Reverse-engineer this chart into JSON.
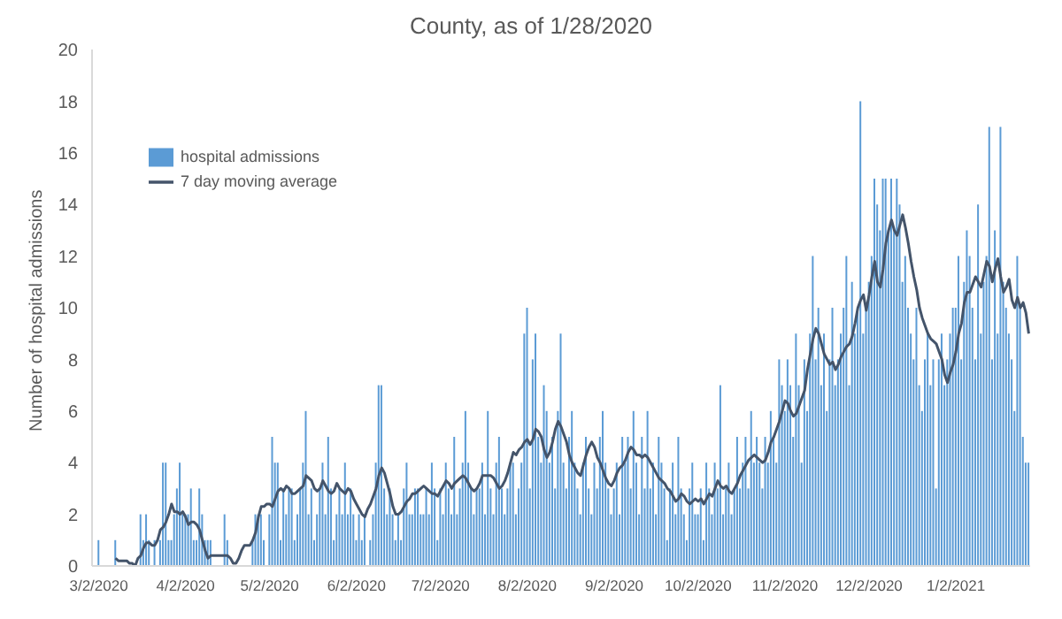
{
  "chart_data": {
    "type": "bar",
    "title": "County, as of 1/28/2020",
    "ylabel": "Number of hospital admissions",
    "categories": [
      "3/2/2020",
      null,
      null,
      null,
      null,
      null,
      null,
      null,
      null,
      null,
      null,
      null,
      null,
      null,
      null,
      null,
      null,
      null,
      null,
      null,
      null,
      null,
      null,
      null,
      null,
      null,
      null,
      null,
      null,
      null,
      null,
      "4/2/2020",
      null,
      null,
      null,
      null,
      null,
      null,
      null,
      null,
      null,
      null,
      null,
      null,
      null,
      null,
      null,
      null,
      null,
      null,
      null,
      null,
      null,
      null,
      null,
      null,
      null,
      null,
      null,
      null,
      null,
      "5/2/2020",
      null,
      null,
      null,
      null,
      null,
      null,
      null,
      null,
      null,
      null,
      null,
      null,
      null,
      null,
      null,
      null,
      null,
      null,
      null,
      null,
      null,
      null,
      null,
      null,
      null,
      null,
      null,
      null,
      null,
      null,
      "6/2/2020",
      null,
      null,
      null,
      null,
      null,
      null,
      null,
      null,
      null,
      null,
      null,
      null,
      null,
      null,
      null,
      null,
      null,
      null,
      null,
      null,
      null,
      null,
      null,
      null,
      null,
      null,
      null,
      null,
      null,
      "7/2/2020",
      null,
      null,
      null,
      null,
      null,
      null,
      null,
      null,
      null,
      null,
      null,
      null,
      null,
      null,
      null,
      null,
      null,
      null,
      null,
      null,
      null,
      null,
      null,
      null,
      null,
      null,
      null,
      null,
      null,
      null,
      "8/2/2020",
      null,
      null,
      null,
      null,
      null,
      null,
      null,
      null,
      null,
      null,
      null,
      null,
      null,
      null,
      null,
      null,
      null,
      null,
      null,
      null,
      null,
      null,
      null,
      null,
      null,
      null,
      null,
      null,
      null,
      null,
      "9/2/2020",
      null,
      null,
      null,
      null,
      null,
      null,
      null,
      null,
      null,
      null,
      null,
      null,
      null,
      null,
      null,
      null,
      null,
      null,
      null,
      null,
      null,
      null,
      null,
      null,
      null,
      null,
      null,
      null,
      null,
      "10/2/2020",
      null,
      null,
      null,
      null,
      null,
      null,
      null,
      null,
      null,
      null,
      null,
      null,
      null,
      null,
      null,
      null,
      null,
      null,
      null,
      null,
      null,
      null,
      null,
      null,
      null,
      null,
      null,
      null,
      null,
      null,
      "11/2/2020",
      null,
      null,
      null,
      null,
      null,
      null,
      null,
      null,
      null,
      null,
      null,
      null,
      null,
      null,
      null,
      null,
      null,
      null,
      null,
      null,
      null,
      null,
      null,
      null,
      null,
      null,
      null,
      null,
      null,
      "12/2/2020",
      null,
      null,
      null,
      null,
      null,
      null,
      null,
      null,
      null,
      null,
      null,
      null,
      null,
      null,
      null,
      null,
      null,
      null,
      null,
      null,
      null,
      null,
      null,
      null,
      null,
      null,
      null,
      null,
      null,
      null,
      "1/2/2021",
      null,
      null,
      null,
      null,
      null,
      null,
      null,
      null,
      null,
      null,
      null,
      null,
      null,
      null,
      null,
      null,
      null,
      null,
      null,
      null,
      null,
      null,
      null,
      null,
      null,
      null
    ],
    "series": [
      {
        "name": "hospital admissions",
        "color": "#5b9bd5",
        "values": [
          1,
          0,
          0,
          0,
          0,
          0,
          1,
          0,
          0,
          0,
          0,
          0,
          0,
          0,
          0,
          2,
          1,
          2,
          1,
          0,
          1,
          0,
          1,
          4,
          4,
          1,
          1,
          2,
          3,
          4,
          2,
          2,
          2,
          3,
          1,
          1,
          3,
          2,
          1,
          1,
          1,
          0,
          0,
          0,
          0,
          2,
          1,
          0,
          0,
          0,
          0,
          0,
          0,
          0,
          0,
          1,
          2,
          2,
          2,
          1,
          0,
          2,
          5,
          4,
          4,
          1,
          3,
          2,
          3,
          3,
          1,
          2,
          3,
          4,
          6,
          2,
          3,
          1,
          2,
          3,
          4,
          2,
          5,
          3,
          1,
          2,
          3,
          2,
          4,
          2,
          3,
          2,
          1,
          2,
          1,
          2,
          0,
          1,
          2,
          4,
          7,
          7,
          3,
          2,
          3,
          2,
          1,
          2,
          1,
          3,
          4,
          2,
          2,
          3,
          3,
          2,
          2,
          3,
          2,
          4,
          3,
          1,
          3,
          2,
          4,
          3,
          2,
          5,
          2,
          3,
          4,
          6,
          4,
          3,
          2,
          3,
          3,
          4,
          2,
          6,
          3,
          2,
          4,
          5,
          3,
          2,
          3,
          4,
          4,
          2,
          3,
          4,
          9,
          10,
          3,
          8,
          9,
          5,
          4,
          7,
          6,
          4,
          5,
          3,
          6,
          9,
          4,
          3,
          5,
          6,
          4,
          3,
          2,
          4,
          5,
          3,
          2,
          4,
          3,
          5,
          6,
          4,
          3,
          2,
          3,
          4,
          2,
          5,
          4,
          5,
          3,
          6,
          4,
          2,
          5,
          3,
          6,
          3,
          4,
          2,
          5,
          4,
          3,
          1,
          3,
          4,
          2,
          5,
          3,
          2,
          1,
          3,
          4,
          2,
          2,
          3,
          1,
          4,
          3,
          2,
          4,
          3,
          7,
          2,
          3,
          4,
          2,
          3,
          5,
          3,
          4,
          5,
          3,
          6,
          4,
          5,
          4,
          3,
          5,
          4,
          6,
          5,
          4,
          8,
          7,
          6,
          8,
          7,
          5,
          9,
          7,
          4,
          8,
          6,
          9,
          12,
          8,
          10,
          7,
          9,
          6,
          8,
          10,
          7,
          8,
          9,
          10,
          12,
          7,
          11,
          9,
          10,
          18,
          9,
          10,
          11,
          12,
          15,
          14,
          13,
          15,
          15,
          13,
          15,
          13,
          15,
          14,
          11,
          12,
          10,
          9,
          8,
          10,
          7,
          6,
          8,
          9,
          7,
          8,
          3,
          8,
          9,
          7,
          8,
          9,
          10,
          10,
          12,
          8,
          11,
          13,
          12,
          10,
          8,
          14,
          9,
          11,
          12,
          17,
          8,
          13,
          9,
          17,
          11,
          10,
          9,
          8,
          6,
          12,
          10,
          5,
          4,
          4
        ]
      },
      {
        "name": "7 day moving average",
        "type": "line",
        "color": "#44546a",
        "values": [
          null,
          null,
          null,
          null,
          null,
          null,
          0.3,
          0.2,
          0.2,
          0.2,
          0.2,
          0.1,
          0.1,
          0.0,
          0.3,
          0.4,
          0.7,
          0.9,
          0.9,
          0.8,
          0.8,
          1.0,
          1.4,
          1.5,
          1.7,
          2.0,
          2.4,
          2.1,
          2.1,
          2.0,
          2.1,
          1.9,
          1.6,
          1.7,
          1.7,
          1.6,
          1.4,
          1.0,
          0.6,
          0.3,
          0.4,
          0.4,
          0.4,
          0.4,
          0.4,
          0.4,
          0.4,
          0.3,
          0.1,
          0.1,
          0.3,
          0.6,
          0.8,
          0.8,
          0.8,
          1.0,
          1.3,
          1.9,
          2.3,
          2.3,
          2.4,
          2.4,
          2.3,
          2.6,
          2.9,
          3.0,
          2.9,
          3.1,
          3.0,
          2.8,
          2.8,
          2.9,
          3.0,
          3.1,
          3.5,
          3.4,
          3.3,
          3.0,
          2.9,
          3.0,
          3.3,
          3.1,
          2.9,
          2.8,
          2.9,
          3.2,
          3.0,
          2.9,
          2.8,
          3.0,
          2.9,
          2.6,
          2.4,
          2.2,
          2.0,
          1.9,
          2.2,
          2.4,
          2.7,
          3.0,
          3.5,
          3.8,
          3.6,
          3.2,
          2.8,
          2.3,
          2.0,
          2.0,
          2.1,
          2.3,
          2.5,
          2.6,
          2.8,
          2.8,
          2.9,
          3.0,
          3.1,
          3.0,
          2.9,
          2.8,
          2.8,
          2.7,
          2.9,
          3.1,
          3.3,
          3.2,
          3.0,
          3.2,
          3.3,
          3.4,
          3.5,
          3.4,
          3.2,
          3.0,
          2.9,
          3.0,
          3.2,
          3.5,
          3.5,
          3.5,
          3.5,
          3.4,
          3.2,
          3.0,
          3.1,
          3.3,
          3.6,
          4.0,
          4.4,
          4.3,
          4.5,
          4.6,
          4.8,
          4.9,
          4.7,
          4.9,
          5.3,
          5.2,
          5.0,
          4.5,
          4.2,
          4.4,
          4.8,
          5.3,
          5.6,
          5.4,
          5.1,
          4.8,
          4.3,
          4.0,
          3.8,
          3.6,
          3.5,
          3.9,
          4.3,
          4.6,
          4.8,
          4.6,
          4.2,
          4.0,
          3.7,
          3.4,
          3.2,
          3.1,
          3.3,
          3.6,
          3.8,
          3.9,
          4.1,
          4.4,
          4.6,
          4.5,
          4.3,
          4.3,
          4.2,
          4.3,
          4.2,
          4.0,
          3.8,
          3.6,
          3.4,
          3.3,
          3.2,
          3.0,
          2.9,
          2.7,
          2.5,
          2.6,
          2.8,
          2.7,
          2.5,
          2.4,
          2.5,
          2.6,
          2.5,
          2.6,
          2.4,
          2.6,
          2.8,
          2.7,
          3.0,
          3.3,
          3.1,
          3.0,
          3.1,
          2.9,
          2.8,
          3.0,
          3.2,
          3.5,
          3.7,
          3.9,
          4.1,
          4.2,
          4.3,
          4.2,
          4.1,
          4.0,
          4.1,
          4.4,
          4.8,
          5.0,
          5.3,
          5.6,
          6.0,
          6.4,
          6.3,
          6.0,
          5.8,
          5.9,
          6.2,
          6.5,
          6.8,
          7.6,
          8.2,
          8.8,
          9.2,
          9.0,
          8.6,
          8.2,
          8.0,
          7.8,
          7.9,
          7.6,
          7.8,
          8.1,
          8.3,
          8.5,
          8.6,
          8.9,
          9.4,
          10.0,
          10.3,
          10.5,
          9.9,
          10.5,
          11.2,
          11.8,
          11.0,
          10.8,
          11.5,
          12.5,
          13.0,
          13.4,
          13.0,
          12.8,
          13.2,
          13.6,
          13.1,
          12.5,
          11.8,
          11.2,
          10.7,
          10.0,
          9.6,
          9.3,
          9.0,
          8.8,
          8.7,
          8.6,
          8.3,
          8.0,
          7.4,
          7.1,
          7.5,
          7.8,
          8.3,
          9.0,
          9.4,
          10.2,
          10.6,
          10.6,
          10.9,
          11.2,
          11.0,
          10.8,
          11.3,
          11.8,
          11.6,
          11.0,
          11.5,
          11.9,
          11.2,
          10.6,
          10.8,
          11.1,
          10.3,
          10.0,
          10.4,
          10.0,
          10.2,
          9.8,
          9.0
        ]
      }
    ],
    "ylim": [
      0,
      20
    ],
    "yticks": [
      0,
      2,
      4,
      6,
      8,
      10,
      12,
      14,
      16,
      18,
      20
    ],
    "grid": false,
    "legend": "top left",
    "marker": "none",
    "line_style": "solid"
  }
}
